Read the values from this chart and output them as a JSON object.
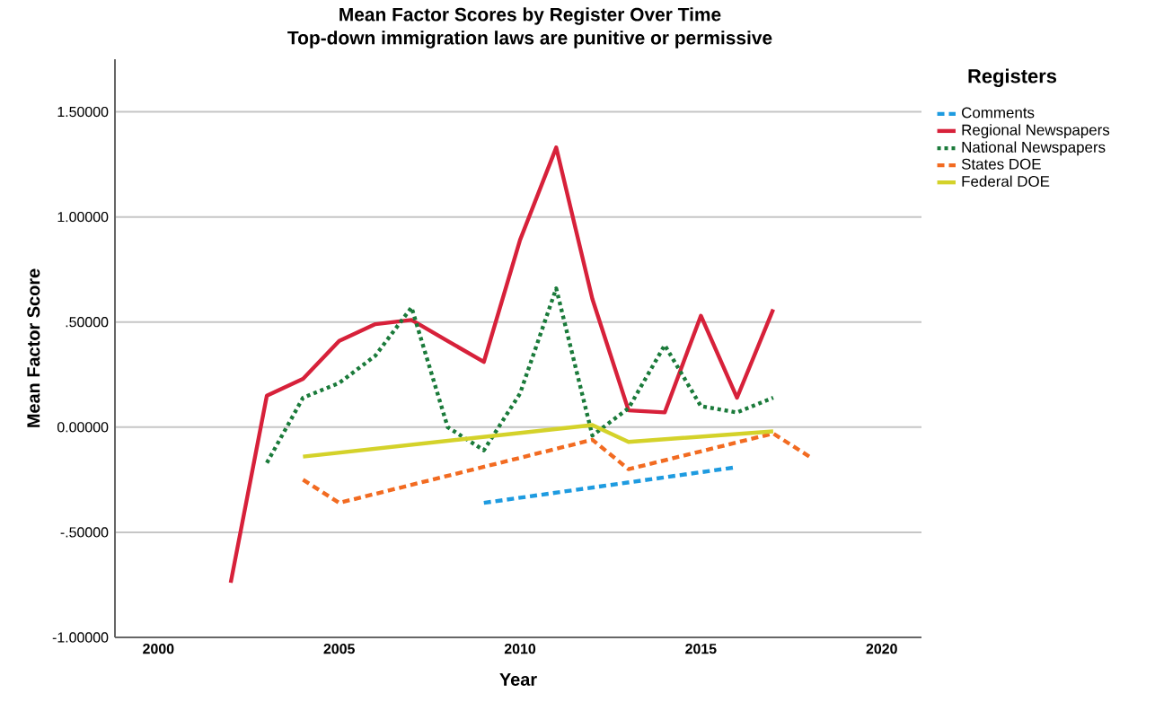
{
  "chart_data": {
    "type": "line",
    "title": "Mean Factor Scores by Register Over Time",
    "subtitle": "Top-down immigration laws are punitive or permissive",
    "xlabel": "Year",
    "ylabel": "Mean Factor Score",
    "legend_title": "Registers",
    "xlim": [
      1998.8,
      2021.1
    ],
    "xticks": [
      2000,
      2005,
      2010,
      2015,
      2020
    ],
    "ylim": [
      -1.0,
      1.75
    ],
    "yticks": [
      {
        "value": -1.0,
        "label": "-1.00000"
      },
      {
        "value": -0.5,
        "label": "-.50000"
      },
      {
        "value": 0.0,
        "label": "0.00000"
      },
      {
        "value": 0.5,
        "label": ".50000"
      },
      {
        "value": 1.0,
        "label": "1.00000"
      },
      {
        "value": 1.5,
        "label": "1.50000"
      }
    ],
    "grid": "y",
    "legend": "right",
    "marker": "none",
    "series": [
      {
        "name": "Comments",
        "color": "#1e9be0",
        "line_style": "dashed",
        "x": [
          2009,
          2016
        ],
        "values": [
          -0.36,
          -0.19
        ]
      },
      {
        "name": "Regional Newspapers",
        "color": "#d7213a",
        "line_style": "solid",
        "x": [
          2002,
          2003,
          2004,
          2005,
          2006,
          2007,
          2008,
          2009,
          2010,
          2011,
          2012,
          2013,
          2014,
          2015,
          2016,
          2017
        ],
        "values": [
          -0.74,
          0.15,
          0.23,
          0.41,
          0.49,
          0.51,
          0.41,
          0.31,
          0.89,
          1.33,
          0.61,
          0.08,
          0.07,
          0.53,
          0.14,
          0.56
        ]
      },
      {
        "name": "National Newspapers",
        "color": "#1a7a3a",
        "line_style": "dotted",
        "x": [
          2003,
          2004,
          2005,
          2006,
          2007,
          2008,
          2009,
          2010,
          2011,
          2012,
          2013,
          2014,
          2015,
          2016,
          2017
        ],
        "values": [
          -0.17,
          0.14,
          0.21,
          0.34,
          0.57,
          0.0,
          -0.11,
          0.16,
          0.66,
          -0.04,
          0.09,
          0.39,
          0.1,
          0.07,
          0.14
        ]
      },
      {
        "name": "States DOE",
        "color": "#f26b21",
        "line_style": "dashed",
        "x": [
          2004,
          2005,
          2012,
          2013,
          2017,
          2018
        ],
        "values": [
          -0.25,
          -0.36,
          -0.06,
          -0.2,
          -0.03,
          -0.14
        ]
      },
      {
        "name": "Federal DOE",
        "color": "#d4d22a",
        "line_style": "solid",
        "x": [
          2004,
          2012,
          2013,
          2017
        ],
        "values": [
          -0.14,
          0.01,
          -0.07,
          -0.02
        ]
      }
    ]
  }
}
